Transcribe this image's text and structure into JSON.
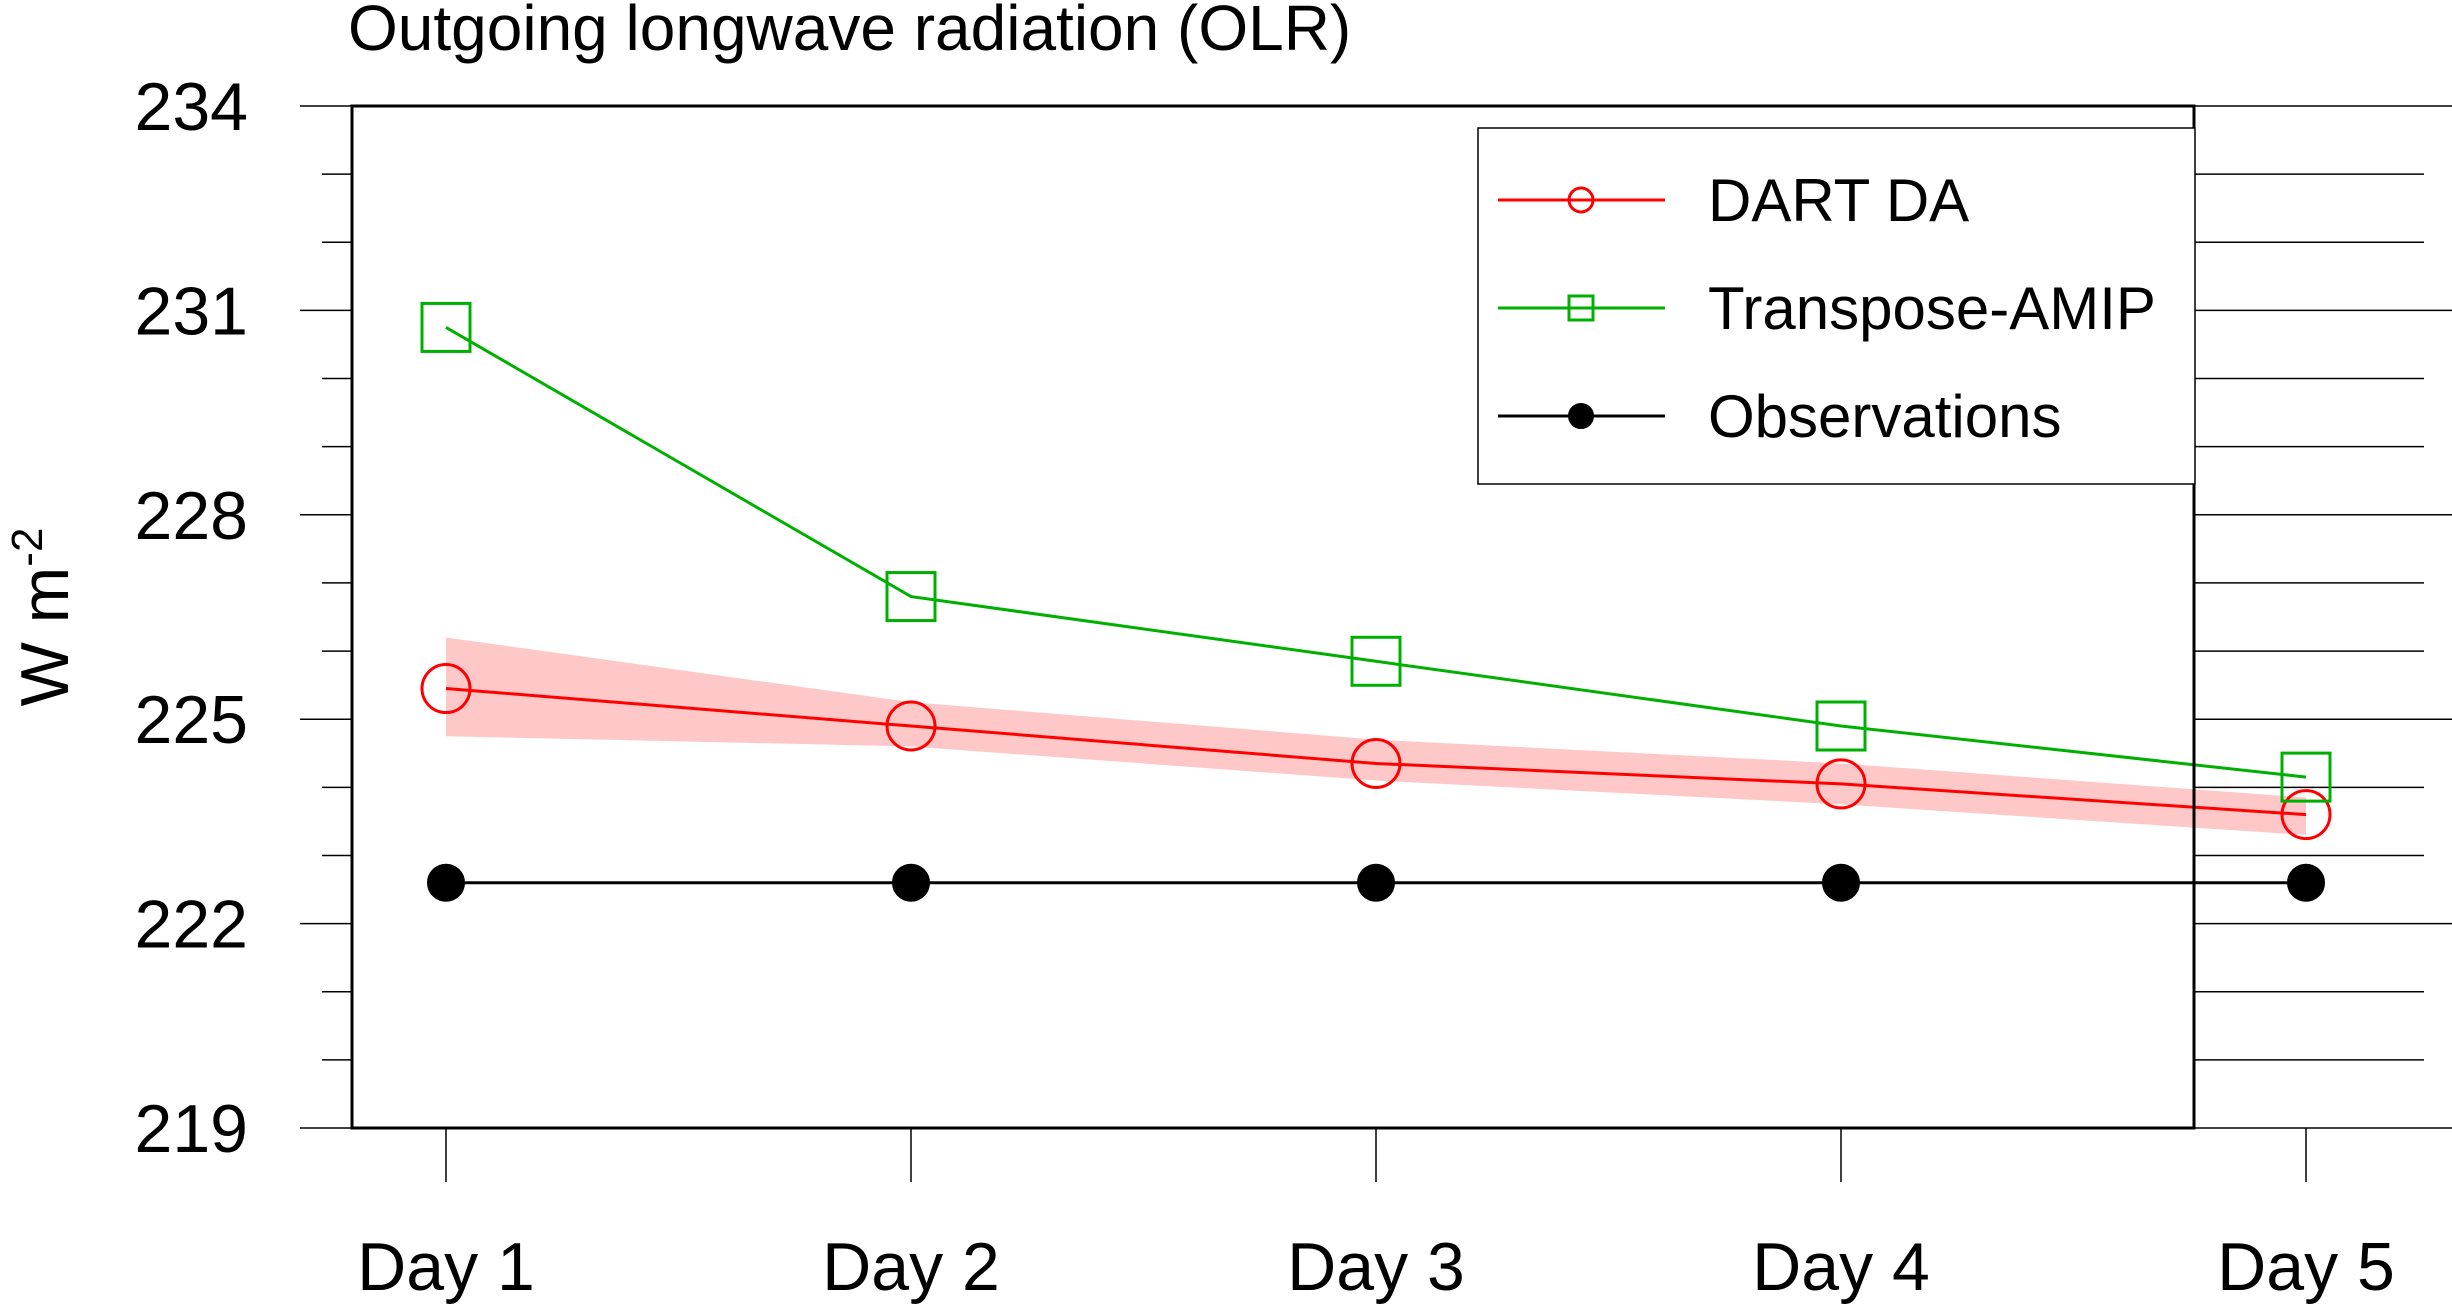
{
  "chart_data": {
    "type": "line",
    "title": "Outgoing longwave radiation (OLR)",
    "ylabel_main": "W m",
    "ylabel_sup": "-2",
    "xlabel": "",
    "categories": [
      "Day 1",
      "Day 2",
      "Day 3",
      "Day 4",
      "Day 5"
    ],
    "ylim": [
      219,
      234
    ],
    "yticks": [
      219,
      222,
      225,
      228,
      231,
      234
    ],
    "series": [
      {
        "name": "DART DA",
        "color": "#ff0000",
        "marker": "open-circle",
        "values": [
          225.45,
          224.9,
          224.35,
          224.05,
          223.6
        ],
        "band_upper": [
          226.2,
          225.25,
          224.7,
          224.35,
          223.85
        ],
        "band_lower": [
          224.75,
          224.6,
          224.1,
          223.75,
          223.3
        ],
        "band_color": "#ffc8c8"
      },
      {
        "name": "Transpose-AMIP",
        "color": "#00b000",
        "marker": "open-square",
        "values": [
          230.75,
          226.8,
          225.85,
          224.9,
          224.15
        ]
      },
      {
        "name": "Observations",
        "color": "#000000",
        "marker": "filled-circle",
        "values": [
          222.6,
          222.6,
          222.6,
          222.6,
          222.6
        ]
      }
    ],
    "legend_position": "top-right",
    "grid": false
  }
}
